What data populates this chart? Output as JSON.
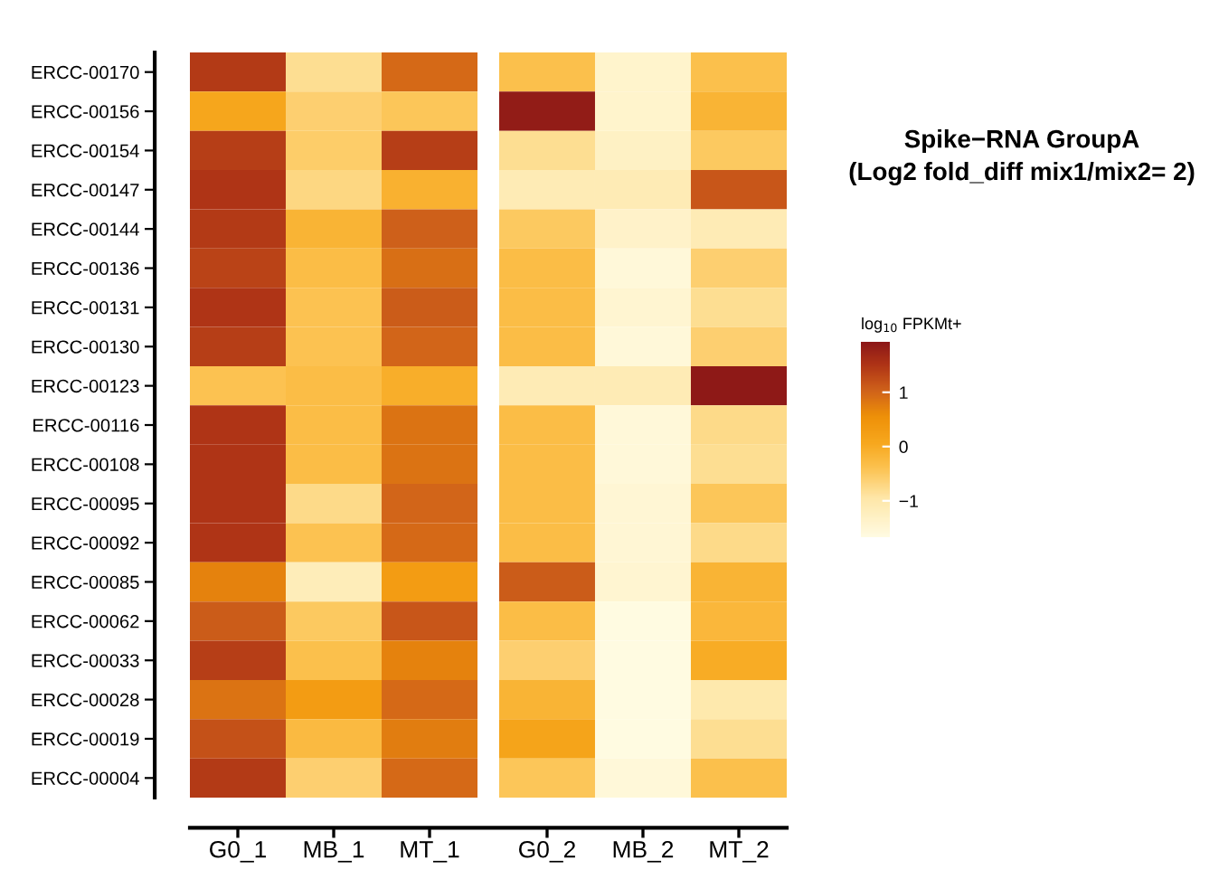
{
  "chart_data": {
    "type": "heatmap",
    "title": "Spike−RNA GroupA",
    "subtitle": "(Log2 fold_diff mix1/mix2= 2)",
    "clabel": "log$_{10}$ FPKMt+",
    "categories": [
      "G0_1",
      "MB_1",
      "MT_1",
      "G0_2",
      "MB_2",
      "MT_2"
    ],
    "y_categories": [
      "ERCC-00170",
      "ERCC-00156",
      "ERCC-00154",
      "ERCC-00147",
      "ERCC-00144",
      "ERCC-00136",
      "ERCC-00131",
      "ERCC-00130",
      "ERCC-00123",
      "ERCC-00116",
      "ERCC-00108",
      "ERCC-00095",
      "ERCC-00092",
      "ERCC-00085",
      "ERCC-00062",
      "ERCC-00033",
      "ERCC-00028",
      "ERCC-00019",
      "ERCC-00004"
    ],
    "cells": [
      [
        1.45,
        -0.8,
        0.95,
        -0.35,
        -1.4,
        -0.35
      ],
      [
        0.1,
        -0.6,
        -0.45,
        1.85,
        -1.4,
        -0.15
      ],
      [
        1.4,
        -0.55,
        1.4,
        -0.8,
        -1.3,
        -0.5
      ],
      [
        1.5,
        -0.7,
        -0.1,
        -1.1,
        -1.1,
        1.15
      ],
      [
        1.45,
        -0.15,
        1.05,
        -0.5,
        -1.35,
        -1.1
      ],
      [
        1.35,
        -0.3,
        0.9,
        -0.3,
        -1.55,
        -0.6
      ],
      [
        1.5,
        -0.4,
        1.1,
        -0.3,
        -1.45,
        -0.8
      ],
      [
        1.4,
        -0.4,
        1.0,
        -0.3,
        -1.55,
        -0.6
      ],
      [
        -0.4,
        -0.3,
        -0.05,
        -1.1,
        -1.1,
        1.9
      ],
      [
        1.5,
        -0.3,
        0.85,
        -0.3,
        -1.55,
        -0.75
      ],
      [
        1.5,
        -0.3,
        0.85,
        -0.3,
        -1.55,
        -0.8
      ],
      [
        1.5,
        -0.75,
        1.0,
        -0.3,
        -1.5,
        -0.45
      ],
      [
        1.5,
        -0.4,
        0.95,
        -0.3,
        -1.5,
        -0.75
      ],
      [
        0.7,
        -1.15,
        0.3,
        1.1,
        -1.45,
        -0.15
      ],
      [
        1.1,
        -0.5,
        1.15,
        -0.3,
        -1.65,
        -0.2
      ],
      [
        1.4,
        -0.35,
        0.7,
        -0.6,
        -1.65,
        0.0
      ],
      [
        0.85,
        0.3,
        0.95,
        -0.15,
        -1.65,
        -1.0
      ],
      [
        1.2,
        -0.25,
        0.75,
        0.15,
        -1.65,
        -0.8
      ],
      [
        1.45,
        -0.6,
        0.95,
        -0.45,
        -1.55,
        -0.35
      ]
    ],
    "clim": [
      -1.67,
      1.93
    ],
    "cticks": [
      {
        "value": 1,
        "label": "1"
      },
      {
        "value": 0,
        "label": "0"
      },
      {
        "value": -1,
        "label": "−1"
      }
    ]
  }
}
